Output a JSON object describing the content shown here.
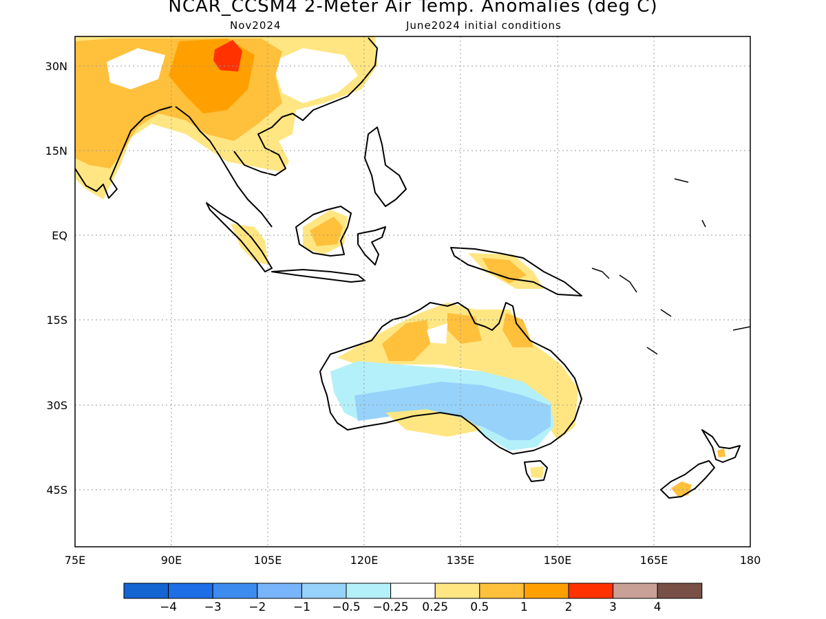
{
  "title": "NCAR_CCSM4 2-Meter Air Temp. Anomalies (deg C)",
  "valid_month": "Nov2024",
  "initial_conditions": "June2024 initial conditions",
  "lat_labels": [
    "30N",
    "15N",
    "EQ",
    "15S",
    "30S",
    "45S"
  ],
  "lon_labels": [
    "75E",
    "90E",
    "105E",
    "120E",
    "135E",
    "150E",
    "165E",
    "180"
  ],
  "colorbar": {
    "colors": [
      "#1464d2",
      "#1e6ee6",
      "#3c8cf0",
      "#78b4fa",
      "#96d2fa",
      "#b4f0fa",
      "#ffffff",
      "#ffe682",
      "#ffc03c",
      "#ffa000",
      "#ff3200",
      "#c8a096",
      "#785046"
    ],
    "labels": [
      "−4",
      "−3",
      "−2",
      "−1",
      "−0.5",
      "−0.25",
      "0.25",
      "0.5",
      "1",
      "2",
      "3",
      "4"
    ]
  }
}
